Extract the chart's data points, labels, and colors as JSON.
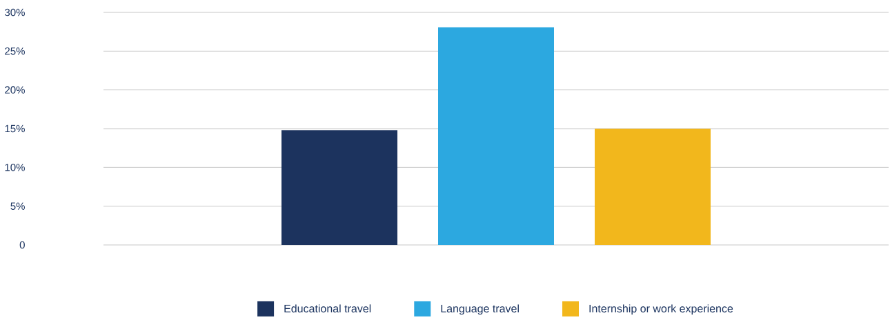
{
  "chart_data": {
    "type": "bar",
    "categories": [
      null
    ],
    "series": [
      {
        "name": "Educational travel",
        "color": "#1c335e",
        "values": [
          14.8
        ]
      },
      {
        "name": "Language travel",
        "color": "#2ca8e0",
        "values": [
          28.1
        ]
      },
      {
        "name": "Internship or work experience",
        "color": "#f2b71c",
        "values": [
          15
        ]
      }
    ],
    "ylim": [
      0,
      30
    ],
    "yticks": [
      {
        "value": 0,
        "label": "0"
      },
      {
        "value": 5,
        "label": "5%"
      },
      {
        "value": 10,
        "label": "10%"
      },
      {
        "value": 15,
        "label": "15%"
      },
      {
        "value": 20,
        "label": "20%"
      },
      {
        "value": 25,
        "label": "25%"
      },
      {
        "value": 30,
        "label": "30%"
      }
    ],
    "grid": "y",
    "legend": "bottom"
  }
}
